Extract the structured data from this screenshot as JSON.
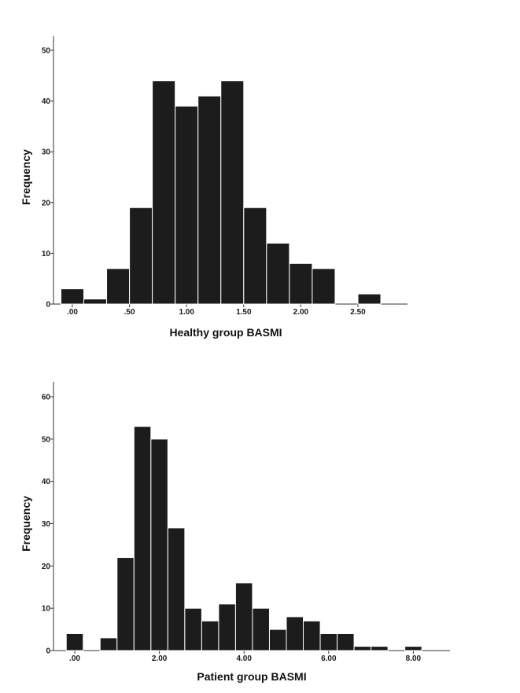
{
  "chart_data": [
    {
      "type": "bar",
      "subtype": "histogram",
      "xlabel": "Healthy group BASMI",
      "ylabel": "Frequency",
      "ylim": [
        0,
        50
      ],
      "yticks": [
        "0",
        "10",
        "20",
        "30",
        "40",
        "50"
      ],
      "xlim": [
        -0.2,
        2.8
      ],
      "xticks": [
        {
          "value": 0.0,
          "label": ".00"
        },
        {
          "value": 0.5,
          "label": ".50"
        },
        {
          "value": 1.0,
          "label": "1.00"
        },
        {
          "value": 1.5,
          "label": "1.50"
        },
        {
          "value": 2.0,
          "label": "2.00"
        },
        {
          "value": 2.5,
          "label": "2.50"
        }
      ],
      "bin_width": 0.2,
      "bins": [
        {
          "x": 0.0,
          "count": 3
        },
        {
          "x": 0.2,
          "count": 1
        },
        {
          "x": 0.4,
          "count": 7
        },
        {
          "x": 0.6,
          "count": 19
        },
        {
          "x": 0.8,
          "count": 44
        },
        {
          "x": 1.0,
          "count": 39
        },
        {
          "x": 1.2,
          "count": 41
        },
        {
          "x": 1.4,
          "count": 44
        },
        {
          "x": 1.6,
          "count": 19
        },
        {
          "x": 1.8,
          "count": 12
        },
        {
          "x": 2.0,
          "count": 8
        },
        {
          "x": 2.2,
          "count": 7
        },
        {
          "x": 2.4,
          "count": 0
        },
        {
          "x": 2.6,
          "count": 2
        }
      ],
      "grid": false,
      "bar_color": "#1c1c1c"
    },
    {
      "type": "bar",
      "subtype": "histogram",
      "xlabel": "Patient group BASMI",
      "ylabel": "Frequency",
      "ylim": [
        0,
        60
      ],
      "yticks": [
        "0",
        "10",
        "20",
        "30",
        "40",
        "50",
        "60"
      ],
      "xlim": [
        -0.4,
        8.4
      ],
      "xticks": [
        {
          "value": 0.0,
          "label": ".00"
        },
        {
          "value": 2.0,
          "label": "2.00"
        },
        {
          "value": 4.0,
          "label": "4.00"
        },
        {
          "value": 6.0,
          "label": "6.00"
        },
        {
          "value": 8.0,
          "label": "8.00"
        }
      ],
      "bin_width": 0.4,
      "bins": [
        {
          "x": 0.0,
          "count": 4
        },
        {
          "x": 0.4,
          "count": 0
        },
        {
          "x": 0.8,
          "count": 3
        },
        {
          "x": 1.2,
          "count": 22
        },
        {
          "x": 1.6,
          "count": 53
        },
        {
          "x": 2.0,
          "count": 50
        },
        {
          "x": 2.4,
          "count": 29
        },
        {
          "x": 2.8,
          "count": 10
        },
        {
          "x": 3.2,
          "count": 7
        },
        {
          "x": 3.6,
          "count": 11
        },
        {
          "x": 4.0,
          "count": 16
        },
        {
          "x": 4.4,
          "count": 10
        },
        {
          "x": 4.8,
          "count": 5
        },
        {
          "x": 5.2,
          "count": 8
        },
        {
          "x": 5.6,
          "count": 7
        },
        {
          "x": 6.0,
          "count": 4
        },
        {
          "x": 6.4,
          "count": 4
        },
        {
          "x": 6.8,
          "count": 1
        },
        {
          "x": 7.2,
          "count": 1
        },
        {
          "x": 7.6,
          "count": 0
        },
        {
          "x": 8.0,
          "count": 1
        }
      ],
      "grid": false,
      "bar_color": "#1c1c1c"
    }
  ]
}
